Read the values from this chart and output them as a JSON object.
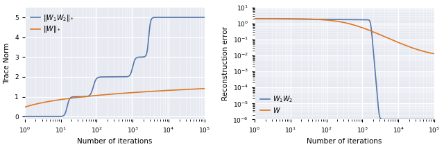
{
  "fig_width": 6.4,
  "fig_height": 2.15,
  "dpi": 100,
  "bg_color": "#e8eaf2",
  "blue_color": "#5577aa",
  "orange_color": "#dd7722",
  "left_xlabel": "Number of iterations",
  "left_ylabel": "Trace Norm",
  "right_xlabel": "Number of iterations",
  "right_ylabel": "Reconstruction error",
  "left_legend": [
    "$\\|W_1W_2\\|_*$",
    "$\\|W\\|_*$"
  ],
  "right_legend": [
    "$W_1W_2$",
    "$W$"
  ],
  "xlim": [
    1,
    100000
  ],
  "left_ylim": [
    -0.15,
    5.5
  ],
  "right_ylim": [
    1e-06,
    10
  ]
}
